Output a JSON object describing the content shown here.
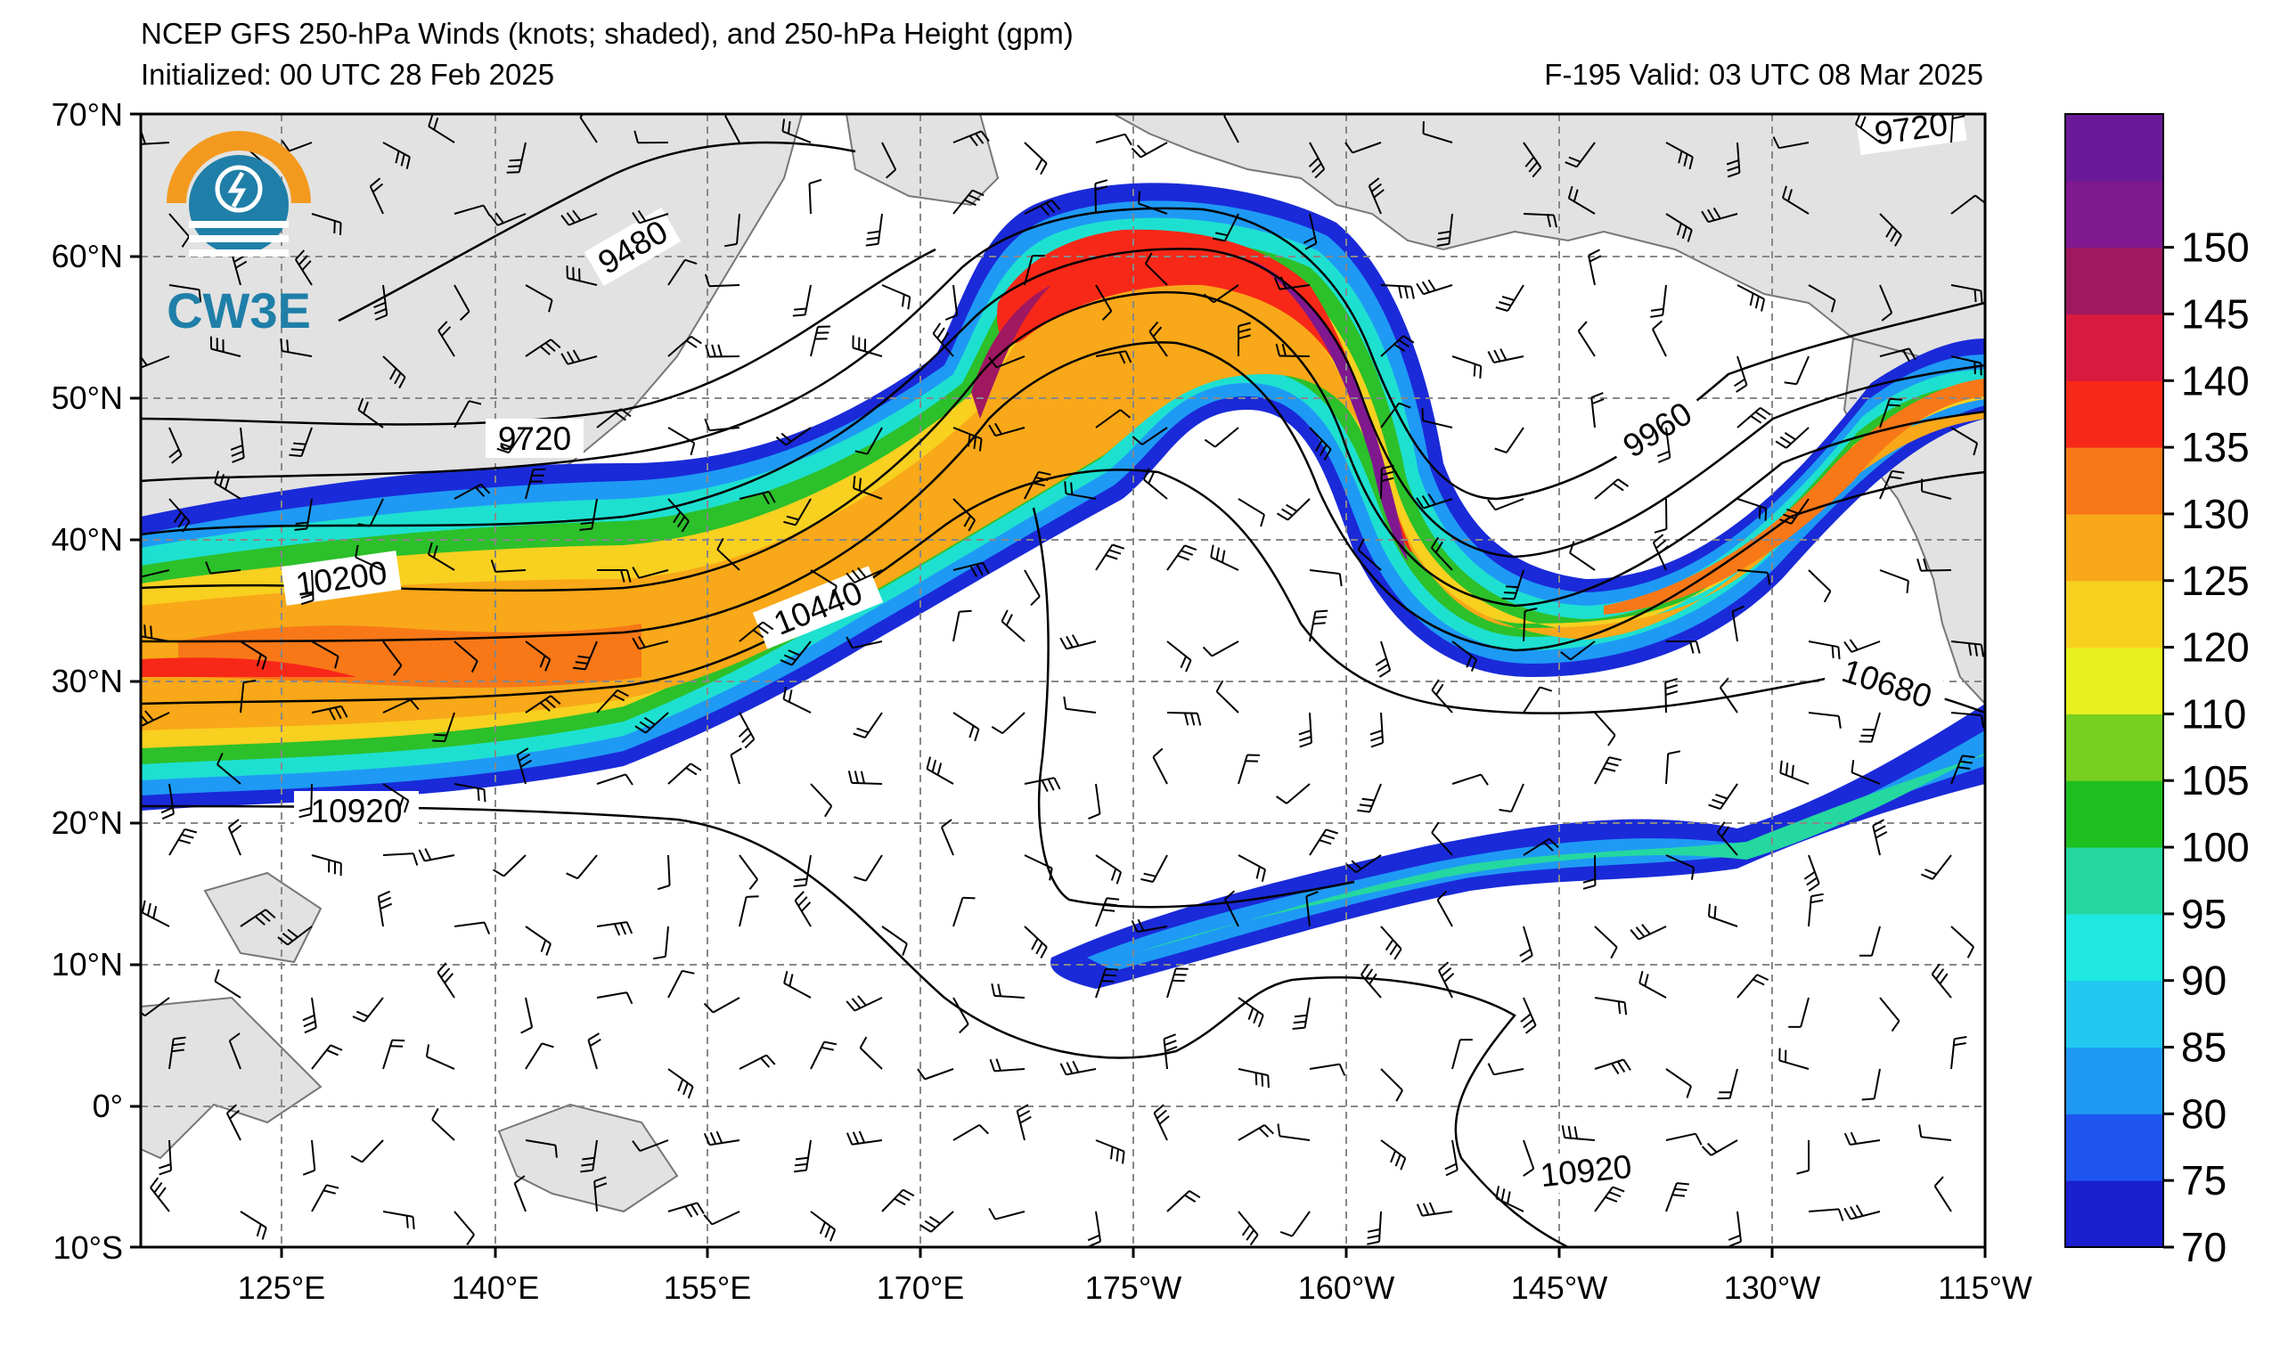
{
  "title": {
    "line1": "NCEP GFS 250-hPa Winds (knots; shaded), and 250-hPa Height (gpm)",
    "init": "Initialized: 00 UTC 28 Feb 2025",
    "valid": "F-195  Valid: 03 UTC 08 Mar 2025"
  },
  "logo": {
    "text": "CW3E"
  },
  "axes": {
    "lat_labels": [
      "70°N",
      "60°N",
      "50°N",
      "40°N",
      "30°N",
      "20°N",
      "10°N",
      "0°",
      "10°S"
    ],
    "lon_labels": [
      "125°E",
      "140°E",
      "155°E",
      "170°E",
      "175°W",
      "160°W",
      "145°W",
      "130°W",
      "115°W"
    ]
  },
  "contours": {
    "labels": [
      "9480",
      "9720",
      "9720",
      "9960",
      "10200",
      "10440",
      "10680",
      "10920",
      "10920"
    ]
  },
  "colorbar": {
    "ticks": [
      "70",
      "75",
      "80",
      "85",
      "90",
      "95",
      "100",
      "105",
      "110",
      "120",
      "125",
      "130",
      "135",
      "140",
      "145",
      "150"
    ],
    "colors": [
      "#1a1fd0",
      "#1e55f0",
      "#1e9af5",
      "#22c8f0",
      "#1ee8e0",
      "#24d8a0",
      "#1ec020",
      "#78d020",
      "#e8f020",
      "#f8d020",
      "#f8a818",
      "#f87818",
      "#f82818",
      "#d81a40",
      "#a01860",
      "#801890",
      "#6a1a98"
    ]
  },
  "chart_data": {
    "type": "map",
    "description_fields": {
      "variable": "250-hPa wind speed (knots) shaded, 250-hPa height (gpm) contours",
      "lat_range": [
        -10,
        70
      ],
      "lon_range": [
        "110°E",
        "115°W"
      ]
    },
    "height_contour_values_gpm": [
      9480,
      9720,
      9960,
      10200,
      10440,
      10680,
      10920
    ],
    "wind_speed_colorbar_knots": [
      70,
      75,
      80,
      85,
      90,
      95,
      100,
      105,
      110,
      120,
      125,
      130,
      135,
      140,
      145,
      150
    ]
  }
}
